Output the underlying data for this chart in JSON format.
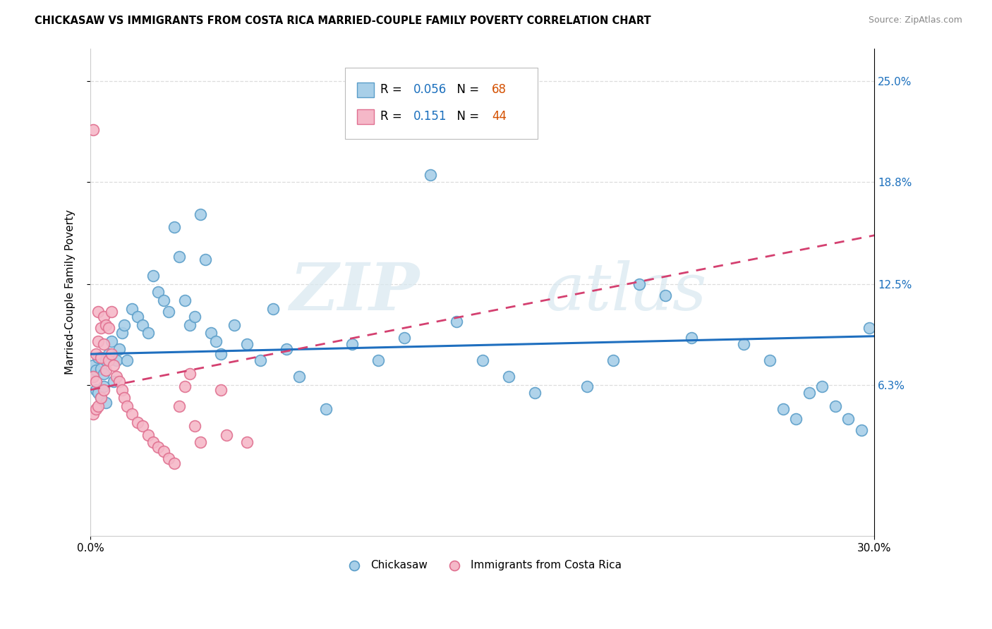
{
  "title": "CHICKASAW VS IMMIGRANTS FROM COSTA RICA MARRIED-COUPLE FAMILY POVERTY CORRELATION CHART",
  "source": "Source: ZipAtlas.com",
  "ylabel": "Married-Couple Family Poverty",
  "xlim": [
    0.0,
    0.3
  ],
  "ylim": [
    -0.03,
    0.27
  ],
  "yticks": [
    0.063,
    0.125,
    0.188,
    0.25
  ],
  "ytick_labels": [
    "6.3%",
    "12.5%",
    "18.8%",
    "25.0%"
  ],
  "xticks": [
    0.0,
    0.3
  ],
  "xtick_labels": [
    "0.0%",
    "30.0%"
  ],
  "blue_fill": "#a8cfe8",
  "blue_edge": "#5b9ec9",
  "pink_fill": "#f5b8c8",
  "pink_edge": "#e07090",
  "blue_line_color": "#1f6fbf",
  "pink_line_color": "#d44070",
  "legend_R1": "0.056",
  "legend_N1": "68",
  "legend_R2": "0.151",
  "legend_N2": "44",
  "legend_number_color": "#1a6fbd",
  "legend_N_color": "#d45000",
  "watermark": "ZIPatlas",
  "grid_color": "#dddddd",
  "blue_scatter_x": [
    0.001,
    0.001,
    0.002,
    0.002,
    0.003,
    0.003,
    0.004,
    0.004,
    0.005,
    0.005,
    0.006,
    0.006,
    0.007,
    0.008,
    0.009,
    0.01,
    0.011,
    0.012,
    0.013,
    0.014,
    0.016,
    0.018,
    0.02,
    0.022,
    0.024,
    0.026,
    0.028,
    0.03,
    0.032,
    0.034,
    0.036,
    0.038,
    0.04,
    0.042,
    0.044,
    0.046,
    0.048,
    0.05,
    0.055,
    0.06,
    0.065,
    0.07,
    0.075,
    0.08,
    0.09,
    0.1,
    0.11,
    0.12,
    0.13,
    0.14,
    0.15,
    0.16,
    0.17,
    0.19,
    0.2,
    0.21,
    0.22,
    0.23,
    0.25,
    0.26,
    0.265,
    0.27,
    0.275,
    0.28,
    0.285,
    0.29,
    0.295,
    0.298
  ],
  "blue_scatter_y": [
    0.075,
    0.068,
    0.072,
    0.06,
    0.08,
    0.058,
    0.073,
    0.055,
    0.07,
    0.062,
    0.078,
    0.052,
    0.082,
    0.09,
    0.065,
    0.078,
    0.085,
    0.095,
    0.1,
    0.078,
    0.11,
    0.105,
    0.1,
    0.095,
    0.13,
    0.12,
    0.115,
    0.108,
    0.16,
    0.142,
    0.115,
    0.1,
    0.105,
    0.168,
    0.14,
    0.095,
    0.09,
    0.082,
    0.1,
    0.088,
    0.078,
    0.11,
    0.085,
    0.068,
    0.048,
    0.088,
    0.078,
    0.092,
    0.192,
    0.102,
    0.078,
    0.068,
    0.058,
    0.062,
    0.078,
    0.125,
    0.118,
    0.092,
    0.088,
    0.078,
    0.048,
    0.042,
    0.058,
    0.062,
    0.05,
    0.042,
    0.035,
    0.098
  ],
  "pink_scatter_x": [
    0.001,
    0.001,
    0.001,
    0.002,
    0.002,
    0.002,
    0.003,
    0.003,
    0.003,
    0.004,
    0.004,
    0.004,
    0.005,
    0.005,
    0.005,
    0.006,
    0.006,
    0.007,
    0.007,
    0.008,
    0.008,
    0.009,
    0.01,
    0.011,
    0.012,
    0.013,
    0.014,
    0.016,
    0.018,
    0.02,
    0.022,
    0.024,
    0.026,
    0.028,
    0.03,
    0.032,
    0.034,
    0.036,
    0.038,
    0.04,
    0.042,
    0.05,
    0.052,
    0.06
  ],
  "pink_scatter_y": [
    0.22,
    0.068,
    0.045,
    0.082,
    0.065,
    0.048,
    0.108,
    0.09,
    0.05,
    0.098,
    0.08,
    0.055,
    0.105,
    0.088,
    0.06,
    0.1,
    0.072,
    0.098,
    0.078,
    0.108,
    0.082,
    0.075,
    0.068,
    0.065,
    0.06,
    0.055,
    0.05,
    0.045,
    0.04,
    0.038,
    0.032,
    0.028,
    0.025,
    0.022,
    0.018,
    0.015,
    0.05,
    0.062,
    0.07,
    0.038,
    0.028,
    0.06,
    0.032,
    0.028
  ],
  "blue_line_x0": 0.0,
  "blue_line_x1": 0.3,
  "blue_line_y0": 0.082,
  "blue_line_y1": 0.093,
  "pink_line_x0": 0.0,
  "pink_line_x1": 0.3,
  "pink_line_y0": 0.06,
  "pink_line_y1": 0.155
}
